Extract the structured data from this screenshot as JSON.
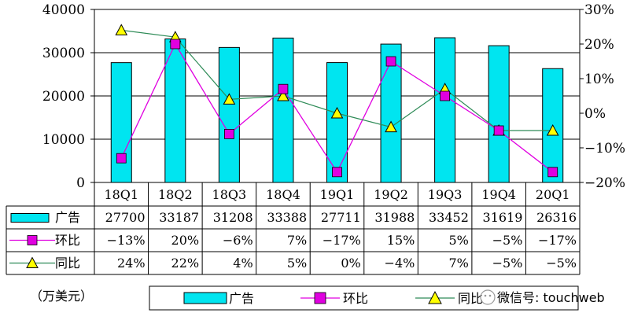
{
  "chart_data": {
    "type": "bar",
    "categories": [
      "18Q1",
      "18Q2",
      "18Q3",
      "18Q4",
      "19Q1",
      "19Q2",
      "19Q3",
      "19Q4",
      "20Q1"
    ],
    "series": [
      {
        "name": "广告",
        "type": "bar",
        "axis": "left",
        "color": "#00E5F0",
        "values": [
          27700,
          33187,
          31208,
          33388,
          27711,
          31988,
          33452,
          31619,
          26316
        ]
      },
      {
        "name": "环比",
        "type": "line",
        "axis": "right",
        "marker": "square",
        "color": "#E000E0",
        "values": [
          -13,
          20,
          -6,
          7,
          -17,
          15,
          5,
          -5,
          -17
        ],
        "labels": [
          "−13%",
          "20%",
          "−6%",
          "7%",
          "−17%",
          "15%",
          "5%",
          "−5%",
          "−17%"
        ]
      },
      {
        "name": "同比",
        "type": "line",
        "axis": "right",
        "marker": "triangle",
        "color": "#FFFF00",
        "line_color": "#2E8B57",
        "values": [
          24,
          22,
          4,
          5,
          0,
          -4,
          7,
          -5,
          -5
        ],
        "labels": [
          "24%",
          "22%",
          "4%",
          "5%",
          "0%",
          "−4%",
          "7%",
          "−5%",
          "−5%"
        ]
      }
    ],
    "left_axis": {
      "min": 0,
      "max": 40000,
      "ticks": [
        "0",
        "10000",
        "20000",
        "30000",
        "40000"
      ]
    },
    "right_axis": {
      "min": -20,
      "max": 30,
      "ticks": [
        "−20%",
        "−10%",
        "0%",
        "10%",
        "20%",
        "30%"
      ]
    },
    "grid": true,
    "unit_label": "（万美元）",
    "legend_position": "bottom",
    "watermark": "微信号: touchweb"
  }
}
